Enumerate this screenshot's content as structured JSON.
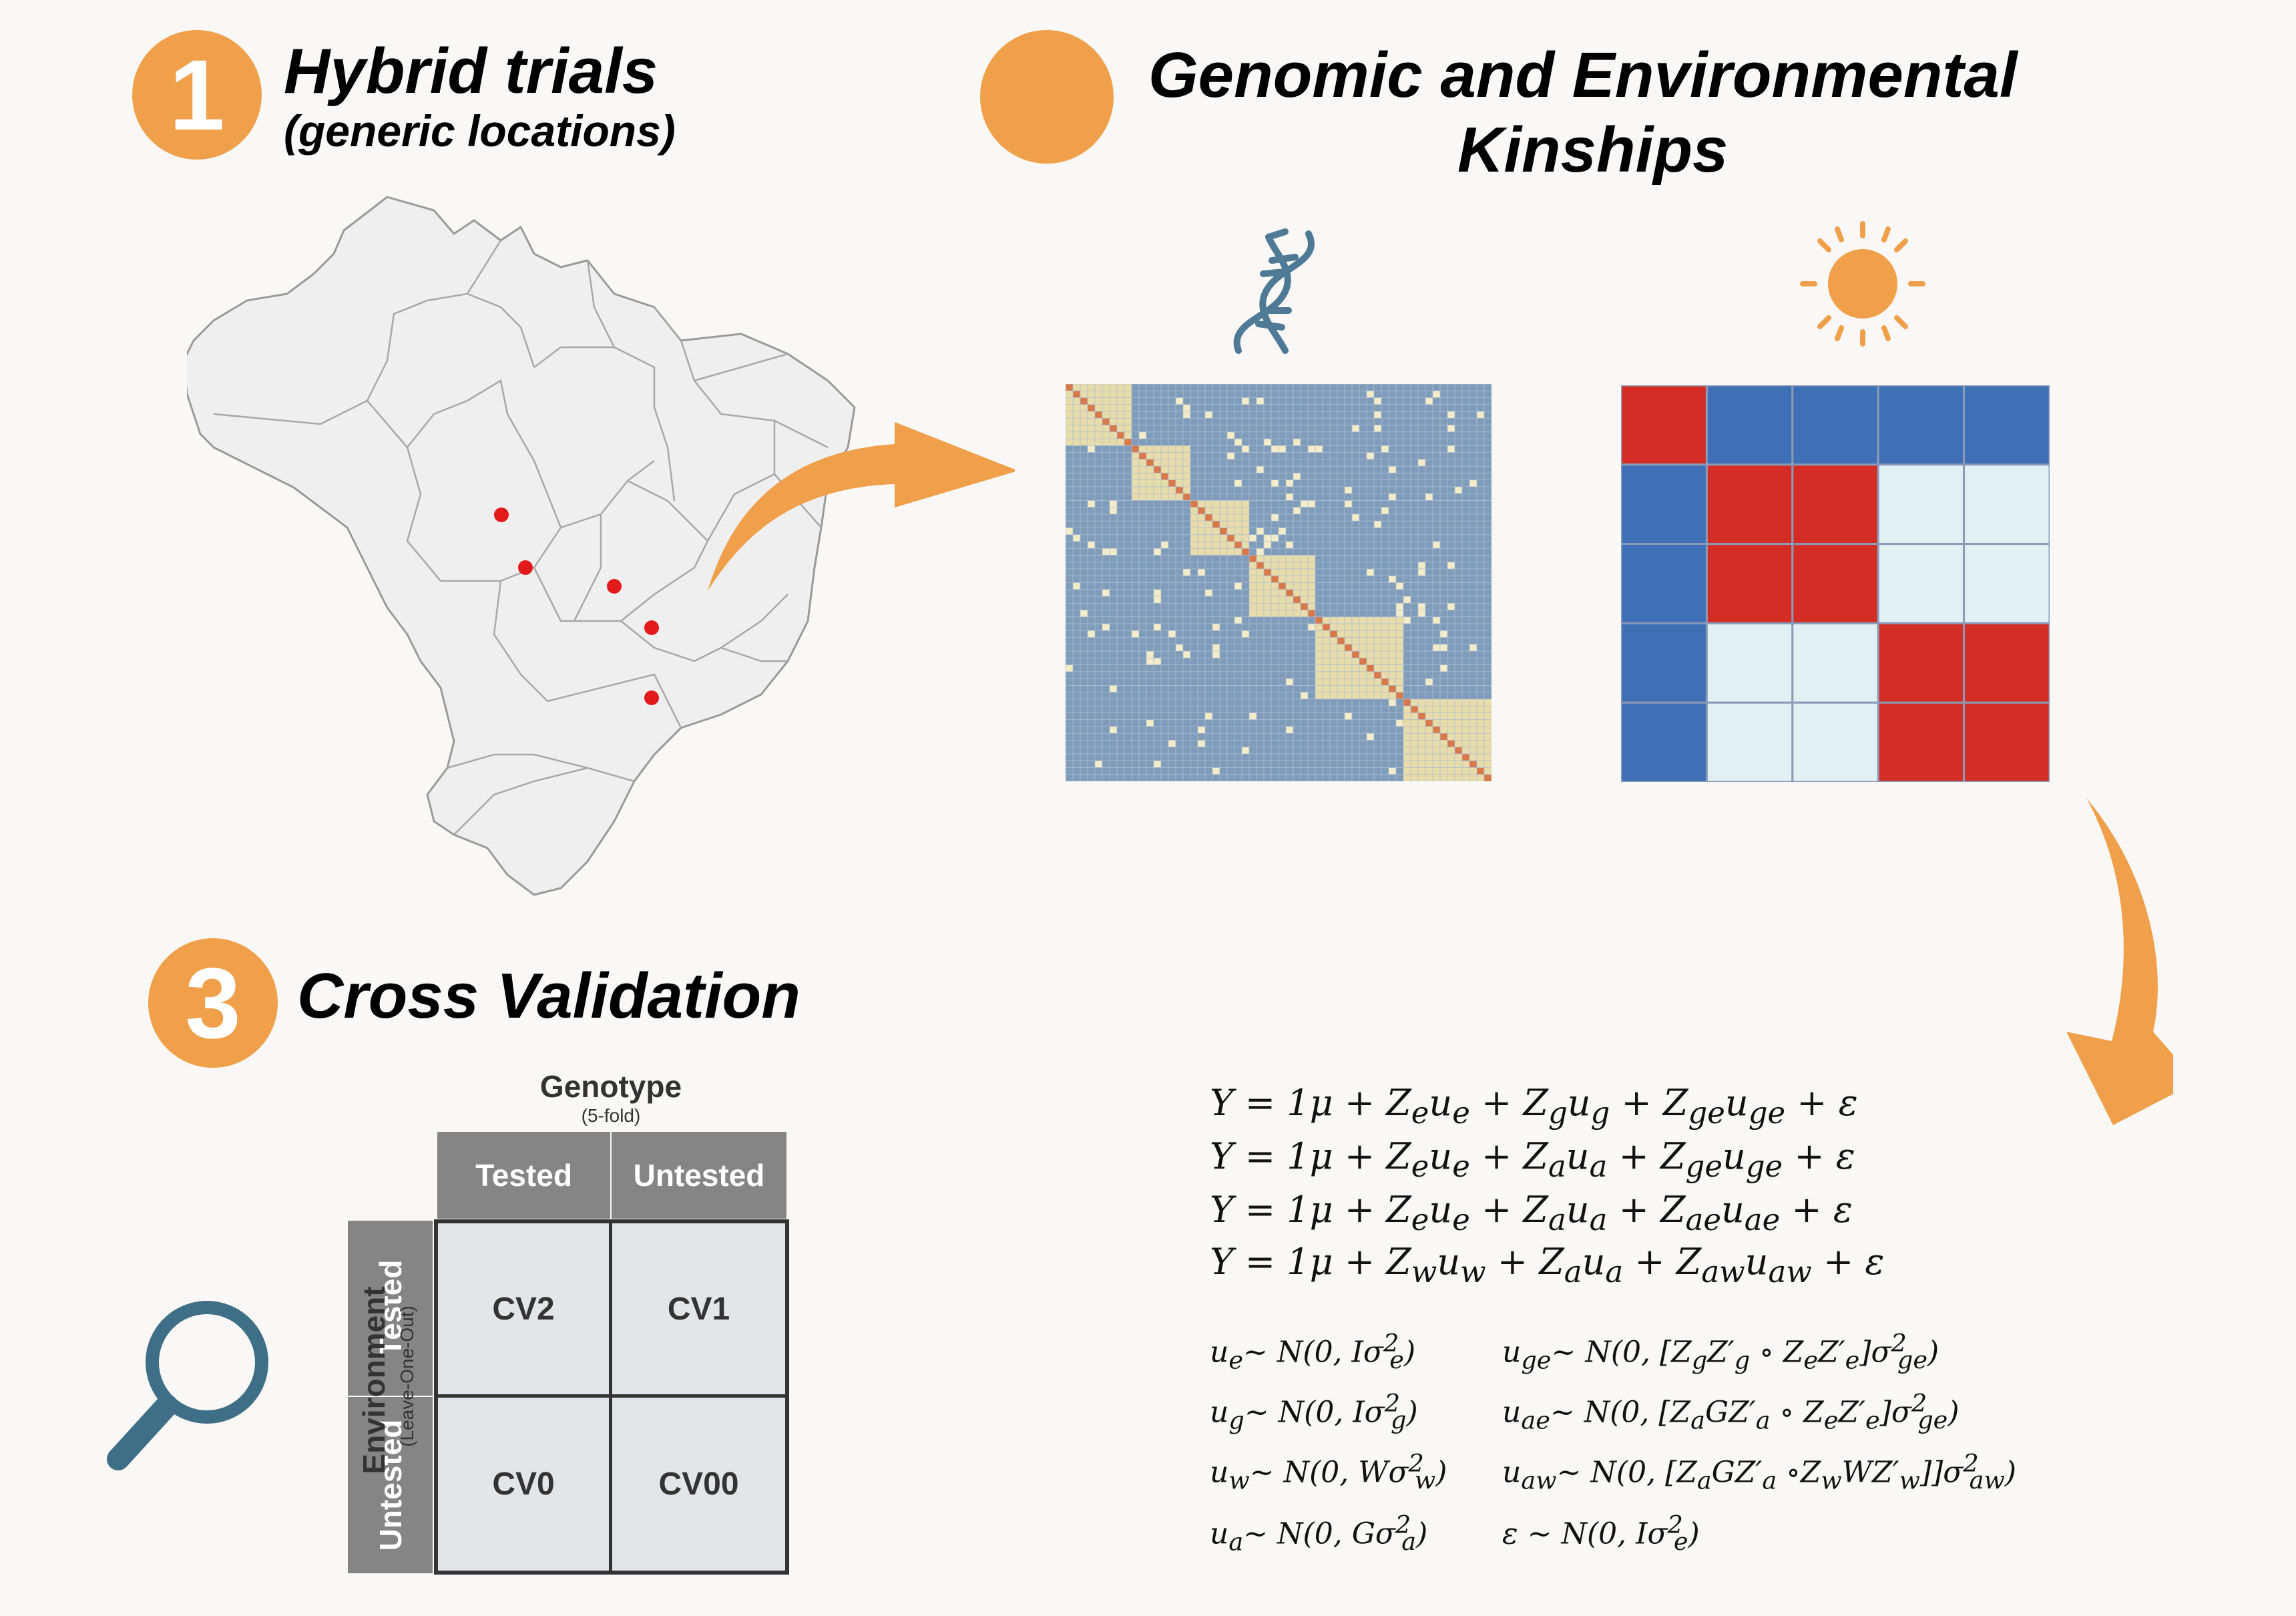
{
  "section1": {
    "number": "1",
    "title": "Hybrid trials",
    "subtitle": "(generic locations)"
  },
  "section2": {
    "title_line1": "Genomic and Environmental",
    "title_line2": "Kinships"
  },
  "section3": {
    "number": "3",
    "title": "Cross Validation"
  },
  "colors": {
    "accent_orange": "#f0a04b",
    "dots_red": "#e31a1c",
    "grm_blue": "#7f9cbb",
    "grm_yellow": "#e8dcaa",
    "env_red": "#d42d26",
    "env_blue": "#3f6fb4",
    "env_light": "#e1f0f2",
    "dna_blue": "#4e7a96",
    "magnifier_blue": "#3f6f86"
  },
  "icons": [
    "dna-icon",
    "sun-icon",
    "magnifier-icon"
  ],
  "env_matrix": [
    [
      "R",
      "B",
      "B",
      "B",
      "B"
    ],
    [
      "B",
      "R",
      "R",
      "L",
      "L"
    ],
    [
      "B",
      "R",
      "R",
      "L",
      "L"
    ],
    [
      "B",
      "L",
      "L",
      "R",
      "R"
    ],
    [
      "B",
      "L",
      "L",
      "R",
      "R"
    ]
  ],
  "models": [
    "Y = 1μ + Z_e u_e + Z_g u_g + Z_ge u_ge + ε",
    "Y = 1μ + Z_e u_e + Z_a u_a + Z_ge u_ge + ε",
    "Y = 1μ + Z_e u_e + Z_a u_a + Z_ae u_ae + ε",
    "Y = 1μ + Z_w u_w + Z_a u_a + Z_aw u_aw + ε"
  ],
  "distributions": {
    "left": [
      "u_e ~ N(0, Iσ²_e)",
      "u_g ~ N(0, Iσ²_g)",
      "u_w ~ N(0, Wσ²_w)",
      "u_a ~ N(0, Gσ²_a)"
    ],
    "right": [
      "u_ge ~ N(0, [Z_g Z'_g ∘ Z_e Z'_e]σ²_ge)",
      "u_ae ~ N(0, [Z_a G Z'_a ∘ Z_e Z'_e]σ²_ge)",
      "u_aw ~ N(0, [Z_a G Z'_a ∘ Z_w W Z'_w]]σ²_aw)",
      "ε ~ N(0, Iσ²_e)"
    ]
  },
  "cv_table": {
    "genotype_label": "Genotype",
    "genotype_sub": "(5-fold)",
    "col_tested": "Tested",
    "col_untested": "Untested",
    "environment_label": "Environment",
    "environment_sub": "(Leave-One-Out)",
    "row_tested": "Tested",
    "row_untested": "Untested",
    "cv2": "CV2",
    "cv1": "CV1",
    "cv0": "CV0",
    "cv00": "CV00"
  }
}
